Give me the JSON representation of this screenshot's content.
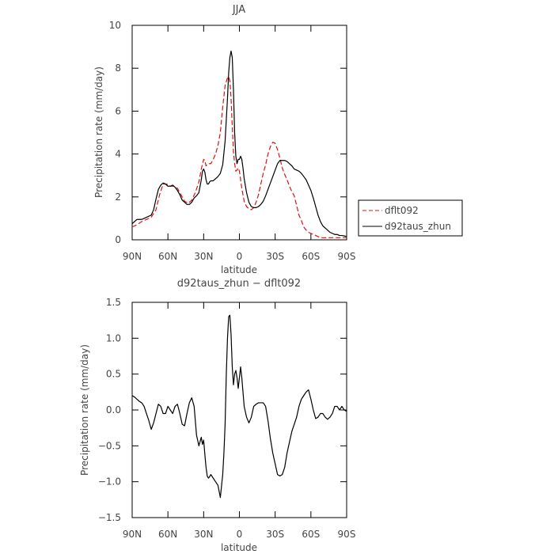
{
  "chart_data": [
    {
      "type": "line",
      "title": "JJA",
      "xlabel": "latitude",
      "ylabel": "Precipitation rate (mm/day)",
      "xlim": [
        90,
        -90
      ],
      "ylim": [
        0,
        10
      ],
      "xticks": [
        90,
        60,
        30,
        0,
        -30,
        -60,
        -90
      ],
      "xtick_labels": [
        "90N",
        "60N",
        "30N",
        "0",
        "30S",
        "60S",
        "90S"
      ],
      "yticks": [
        0,
        2,
        4,
        6,
        8,
        10
      ],
      "ytick_labels": [
        "0",
        "2",
        "4",
        "6",
        "8",
        "10"
      ],
      "grid": false,
      "legend": "right",
      "series": [
        {
          "name": "dflt092",
          "color": "#e01010",
          "dash": true,
          "x": [
            90,
            86,
            82,
            78,
            74,
            70,
            67,
            64,
            61,
            58,
            55,
            52,
            49,
            46,
            43,
            40,
            37,
            34,
            32,
            30,
            29,
            28,
            26,
            24,
            22,
            20,
            18,
            16,
            14,
            12,
            10,
            9,
            8,
            7,
            6,
            5,
            4,
            3,
            2,
            1,
            0,
            -2,
            -4,
            -6,
            -8,
            -10,
            -12,
            -14,
            -16,
            -18,
            -20,
            -22,
            -24,
            -26,
            -28,
            -30,
            -32,
            -34,
            -36,
            -38,
            -40,
            -42,
            -44,
            -46,
            -48,
            -50,
            -52,
            -54,
            -56,
            -58,
            -60,
            -62,
            -64,
            -66,
            -68,
            -70,
            -72,
            -74,
            -76,
            -78,
            -80,
            -82,
            -84,
            -86,
            -88,
            -90
          ],
          "y": [
            0.6,
            0.7,
            0.85,
            0.95,
            1.05,
            1.4,
            2.1,
            2.6,
            2.6,
            2.5,
            2.5,
            2.4,
            2.1,
            1.8,
            1.7,
            1.85,
            2.2,
            2.7,
            3.3,
            3.75,
            3.7,
            3.45,
            3.55,
            3.55,
            3.75,
            4.0,
            4.4,
            5.0,
            6.2,
            7.2,
            7.55,
            7.6,
            7.4,
            6.6,
            5.3,
            4.1,
            3.55,
            3.2,
            3.25,
            3.35,
            3.2,
            2.4,
            1.8,
            1.55,
            1.45,
            1.4,
            1.5,
            1.75,
            2.1,
            2.6,
            3.1,
            3.5,
            4.0,
            4.35,
            4.55,
            4.5,
            4.2,
            3.8,
            3.35,
            3.05,
            2.8,
            2.5,
            2.25,
            2.05,
            1.6,
            1.15,
            0.9,
            0.6,
            0.45,
            0.35,
            0.3,
            0.25,
            0.2,
            0.15,
            0.1,
            0.1,
            0.1,
            0.1,
            0.1,
            0.1,
            0.1,
            0.1,
            0.1,
            0.1,
            0.1,
            0.1
          ]
        },
        {
          "name": "d92taus_zhun",
          "color": "#000000",
          "dash": false,
          "x": [
            90,
            88,
            86,
            84,
            82,
            80,
            78,
            76,
            74,
            72,
            70,
            68,
            66,
            64,
            62,
            60,
            58,
            56,
            54,
            52,
            50,
            48,
            46,
            44,
            42,
            40,
            38,
            36,
            34,
            32,
            31,
            30,
            29,
            28,
            27,
            26,
            25,
            24,
            22,
            20,
            18,
            16,
            14,
            12,
            10,
            9,
            8,
            7,
            6,
            5,
            4,
            3,
            2,
            1,
            0,
            -1,
            -2,
            -3,
            -4,
            -6,
            -8,
            -10,
            -12,
            -14,
            -16,
            -18,
            -20,
            -22,
            -24,
            -26,
            -28,
            -30,
            -32,
            -34,
            -36,
            -38,
            -40,
            -42,
            -44,
            -46,
            -48,
            -50,
            -52,
            -54,
            -56,
            -58,
            -60,
            -62,
            -64,
            -66,
            -68,
            -70,
            -72,
            -74,
            -76,
            -78,
            -80,
            -82,
            -84,
            -86,
            -88,
            -90
          ],
          "y": [
            0.75,
            0.85,
            0.95,
            0.95,
            0.95,
            1.0,
            1.05,
            1.1,
            1.15,
            1.4,
            1.9,
            2.35,
            2.55,
            2.65,
            2.6,
            2.5,
            2.5,
            2.55,
            2.45,
            2.3,
            2.1,
            1.85,
            1.75,
            1.65,
            1.65,
            1.75,
            1.95,
            2.05,
            2.2,
            2.8,
            3.2,
            3.3,
            3.15,
            2.8,
            2.6,
            2.6,
            2.7,
            2.75,
            2.75,
            2.85,
            2.95,
            3.1,
            3.5,
            4.6,
            6.6,
            7.8,
            8.5,
            8.8,
            8.5,
            7.0,
            5.0,
            3.9,
            3.55,
            3.75,
            3.75,
            3.9,
            3.75,
            3.35,
            2.85,
            2.2,
            1.75,
            1.55,
            1.5,
            1.5,
            1.55,
            1.65,
            1.8,
            2.05,
            2.35,
            2.65,
            2.95,
            3.25,
            3.55,
            3.7,
            3.7,
            3.7,
            3.65,
            3.55,
            3.45,
            3.3,
            3.25,
            3.2,
            3.1,
            2.95,
            2.8,
            2.55,
            2.3,
            1.95,
            1.55,
            1.15,
            0.85,
            0.65,
            0.55,
            0.45,
            0.35,
            0.3,
            0.25,
            0.25,
            0.2,
            0.2,
            0.18,
            0.15
          ]
        }
      ]
    },
    {
      "type": "line",
      "title": "d92taus_zhun − dflt092",
      "xlabel": "latitude",
      "ylabel": "Precipitation rate (mm/day)",
      "xlim": [
        90,
        -90
      ],
      "ylim": [
        -1.5,
        1.5
      ],
      "xticks": [
        90,
        60,
        30,
        0,
        -30,
        -60,
        -90
      ],
      "xtick_labels": [
        "90N",
        "60N",
        "30N",
        "0",
        "30S",
        "60S",
        "90S"
      ],
      "yticks": [
        -1.5,
        -1.0,
        -0.5,
        0.0,
        0.5,
        1.0,
        1.5
      ],
      "ytick_labels": [
        "−1.5",
        "−1.0",
        "−0.5",
        "0.0",
        "0.5",
        "1.0",
        "1.5"
      ],
      "grid": false,
      "series": [
        {
          "color": "#000000",
          "dash": false,
          "x": [
            90,
            88,
            86,
            84,
            82,
            80,
            78,
            76,
            74,
            72,
            70,
            68,
            66,
            64,
            62,
            60,
            58,
            56,
            54,
            52,
            50,
            48,
            46,
            44,
            42,
            40,
            38,
            36,
            34,
            32,
            31,
            30,
            29,
            28,
            27,
            26,
            25,
            24,
            22,
            20,
            18,
            16,
            14,
            13,
            12,
            11,
            10,
            9,
            8,
            7,
            6,
            5,
            4,
            3,
            2,
            1,
            0,
            -1,
            -2,
            -3,
            -4,
            -6,
            -8,
            -10,
            -12,
            -14,
            -16,
            -18,
            -20,
            -22,
            -24,
            -26,
            -28,
            -30,
            -32,
            -34,
            -36,
            -38,
            -40,
            -42,
            -44,
            -46,
            -48,
            -50,
            -52,
            -54,
            -56,
            -58,
            -60,
            -62,
            -64,
            -66,
            -68,
            -70,
            -72,
            -74,
            -76,
            -78,
            -80,
            -82,
            -84,
            -86,
            -88,
            -90
          ],
          "y": [
            0.2,
            0.18,
            0.15,
            0.12,
            0.1,
            0.05,
            -0.05,
            -0.15,
            -0.27,
            -0.18,
            -0.05,
            0.08,
            0.05,
            -0.05,
            -0.05,
            0.05,
            0.0,
            -0.05,
            0.05,
            0.08,
            -0.05,
            -0.2,
            -0.22,
            -0.05,
            0.1,
            0.17,
            0.05,
            -0.35,
            -0.5,
            -0.38,
            -0.48,
            -0.42,
            -0.62,
            -0.8,
            -0.92,
            -0.95,
            -0.93,
            -0.9,
            -0.95,
            -1.0,
            -1.05,
            -1.22,
            -0.9,
            -0.6,
            -0.2,
            0.5,
            1.0,
            1.3,
            1.32,
            1.05,
            0.6,
            0.35,
            0.5,
            0.55,
            0.45,
            0.3,
            0.45,
            0.6,
            0.45,
            0.25,
            0.05,
            -0.1,
            -0.18,
            -0.1,
            0.05,
            0.08,
            0.1,
            0.1,
            0.1,
            0.05,
            -0.15,
            -0.4,
            -0.6,
            -0.75,
            -0.9,
            -0.92,
            -0.9,
            -0.8,
            -0.6,
            -0.45,
            -0.3,
            -0.2,
            -0.1,
            0.05,
            0.15,
            0.2,
            0.25,
            0.28,
            0.15,
            0.0,
            -0.12,
            -0.1,
            -0.05,
            -0.05,
            -0.1,
            -0.13,
            -0.1,
            -0.05,
            0.05,
            0.05,
            0.0,
            0.05,
            0.0,
            -0.02
          ]
        }
      ]
    }
  ]
}
